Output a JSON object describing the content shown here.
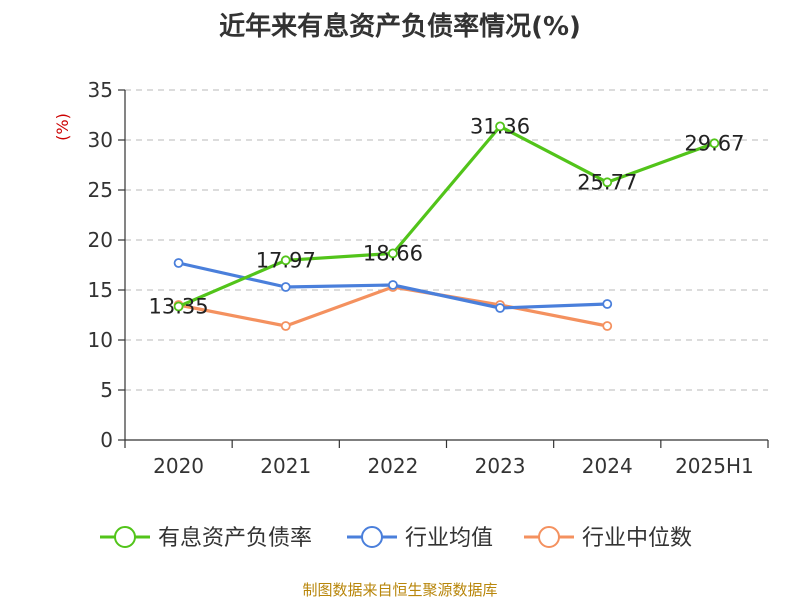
{
  "title": "近年来有息资产负债率情况(%)",
  "source": "制图数据来自恒生聚源数据库",
  "chart_data": {
    "type": "line",
    "title": "近年来有息资产负债率情况(%)",
    "ylabel": "(%)",
    "xlabel": "",
    "categories": [
      "2020",
      "2021",
      "2022",
      "2023",
      "2024",
      "2025H1"
    ],
    "ylim": [
      0,
      35
    ],
    "yticks": [
      0,
      5,
      10,
      15,
      20,
      25,
      30,
      35
    ],
    "grid": true,
    "legend_position": "bottom",
    "series": [
      {
        "name": "有息资产负债率",
        "color": "#52c41a",
        "values": [
          13.35,
          17.97,
          18.66,
          31.36,
          25.77,
          29.67
        ],
        "labels": [
          "13.35",
          "17.97",
          "18.66",
          "31.36",
          "25.77",
          "29.67"
        ]
      },
      {
        "name": "行业均值",
        "color": "#4a7fdb",
        "values": [
          17.7,
          15.3,
          15.5,
          13.2,
          13.6,
          null
        ],
        "labels": []
      },
      {
        "name": "行业中位数",
        "color": "#f4915f",
        "values": [
          13.5,
          11.4,
          15.3,
          13.5,
          11.4,
          null
        ],
        "labels": []
      }
    ]
  }
}
